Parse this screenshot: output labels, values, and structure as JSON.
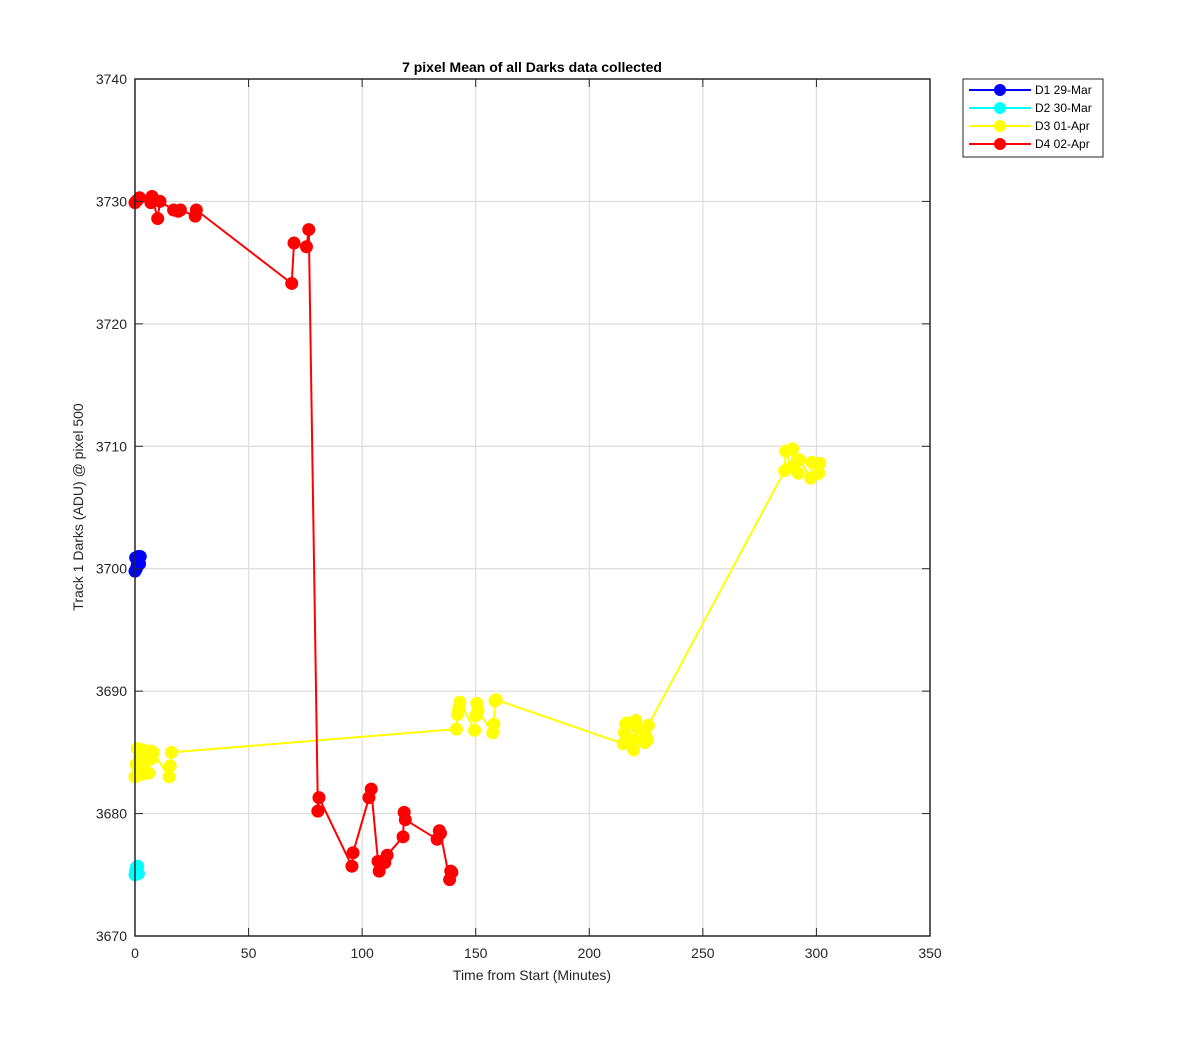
{
  "chart_data": {
    "type": "line",
    "title": "7 pixel Mean of all Darks data collected",
    "xlabel": "Time from Start (Minutes)",
    "ylabel": "Track 1 Darks (ADU) @ pixel 500",
    "xlim": [
      0,
      350
    ],
    "ylim": [
      3670,
      3740
    ],
    "xticks": [
      0,
      50,
      100,
      150,
      200,
      250,
      300,
      350
    ],
    "yticks": [
      3670,
      3680,
      3690,
      3700,
      3710,
      3720,
      3730,
      3740
    ],
    "grid": true,
    "legend_position": "outside-top-right",
    "series": [
      {
        "name": "D1 29-Mar",
        "color": "#0000ff",
        "x": [
          0.0,
          0.3,
          0.6,
          1.0,
          1.5,
          2.0,
          2.3
        ],
        "y": [
          3699.8,
          3700.9,
          3700.0,
          3700.3,
          3701.0,
          3700.4,
          3701.0
        ]
      },
      {
        "name": "D2 30-Mar",
        "color": "#00ffff",
        "x": [
          0.0,
          0.3,
          0.6,
          0.9,
          1.2,
          1.5
        ],
        "y": [
          3675.0,
          3675.3,
          3675.6,
          3675.2,
          3675.7,
          3675.1
        ]
      },
      {
        "name": "D3 01-Apr",
        "color": "#ffff00",
        "x": [
          0.0,
          0.5,
          1.0,
          1.5,
          2.0,
          3.0,
          3.5,
          4.0,
          5.0,
          6.0,
          7.0,
          7.5,
          8.0,
          15.0,
          15.5,
          16.0,
          141.5,
          142.0,
          142.5,
          143.0,
          149.5,
          150.0,
          150.5,
          151.0,
          157.5,
          158.0,
          158.5,
          159.0,
          215.0,
          215.5,
          216.0,
          216.5,
          219.5,
          220.0,
          220.5,
          221.0,
          224.5,
          225.0,
          225.5,
          226.0,
          286.0,
          286.5,
          289.0,
          289.5,
          292.0,
          292.5,
          297.5,
          298.0,
          301.0,
          301.5
        ],
        "y": [
          3683.0,
          3684.0,
          3685.3,
          3683.5,
          3684.5,
          3683.2,
          3685.2,
          3684.0,
          3684.9,
          3683.3,
          3685.1,
          3684.5,
          3685.0,
          3683.0,
          3683.9,
          3685.0,
          3686.9,
          3688.1,
          3688.6,
          3689.1,
          3686.8,
          3688.0,
          3689.0,
          3688.4,
          3686.6,
          3687.3,
          3689.2,
          3689.3,
          3685.7,
          3686.6,
          3687.3,
          3687.4,
          3685.2,
          3686.0,
          3687.6,
          3687.0,
          3685.8,
          3686.3,
          3686.0,
          3687.2,
          3708.0,
          3709.6,
          3708.3,
          3709.8,
          3707.8,
          3708.9,
          3707.4,
          3708.7,
          3707.8,
          3708.6
        ]
      },
      {
        "name": "D4 02-Apr",
        "color": "#ff0000",
        "x": [
          0.0,
          1.0,
          2.0,
          7.0,
          7.5,
          10.0,
          11.0,
          17.0,
          19.0,
          20.0,
          26.5,
          27.0,
          69.0,
          70.0,
          75.5,
          76.5,
          80.5,
          81.0,
          95.5,
          96.0,
          103.0,
          104.0,
          107.0,
          107.5,
          110.0,
          111.0,
          118.0,
          118.5,
          119.0,
          133.0,
          134.0,
          134.5,
          138.5,
          139.0,
          139.5
        ],
        "y": [
          3729.9,
          3730.1,
          3730.3,
          3729.9,
          3730.4,
          3728.6,
          3730.0,
          3729.3,
          3729.2,
          3729.3,
          3728.8,
          3729.3,
          3723.3,
          3726.6,
          3726.3,
          3727.7,
          3680.2,
          3681.3,
          3675.7,
          3676.8,
          3681.3,
          3682.0,
          3676.1,
          3675.3,
          3676.0,
          3676.6,
          3678.1,
          3680.1,
          3679.5,
          3677.9,
          3678.6,
          3678.4,
          3674.6,
          3675.3,
          3675.2
        ]
      }
    ]
  }
}
